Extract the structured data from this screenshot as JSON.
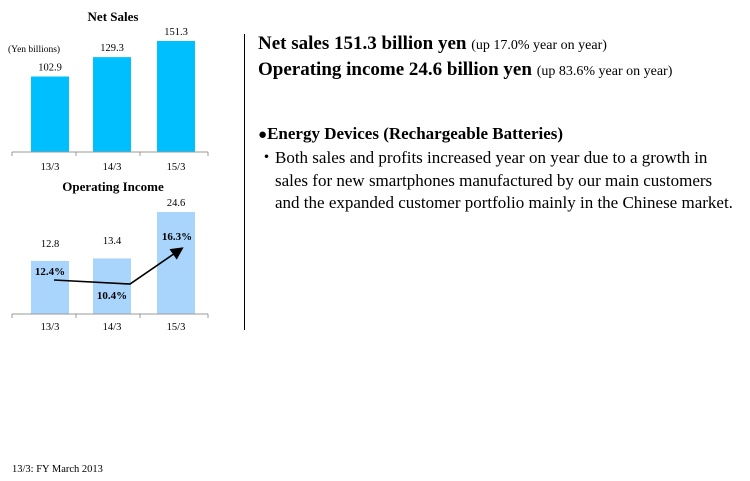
{
  "chart_data": [
    {
      "type": "bar",
      "title": "Net Sales",
      "unit_label": "(Yen billions)",
      "categories": [
        "13/3",
        "14/3",
        "15/3"
      ],
      "values": [
        102.9,
        129.3,
        151.3
      ],
      "value_labels": [
        "102.9",
        "129.3",
        "151.3"
      ],
      "ylim": [
        0,
        151.3
      ],
      "colors": {
        "bar": "#00bfff",
        "axis": "#999999"
      },
      "grid": false
    },
    {
      "type": "bar",
      "title": "Operating Income",
      "categories": [
        "13/3",
        "14/3",
        "15/3"
      ],
      "values": [
        12.8,
        13.4,
        24.6
      ],
      "value_labels": [
        "12.8",
        "13.4",
        "24.6"
      ],
      "margin_labels": [
        "12.4%",
        "10.4%",
        "16.3%"
      ],
      "margin_values": [
        12.4,
        10.4,
        16.3
      ],
      "ylim": [
        0,
        24.6
      ],
      "colors": {
        "bar": "#a9d4fb",
        "axis": "#999999",
        "arrow": "#000000"
      },
      "grid": false
    }
  ],
  "summary": {
    "net_sales": "Net sales 151.3 billion yen",
    "net_sales_note": "(up 17.0% year on year)",
    "operating_income": "Operating income 24.6 billion yen",
    "operating_income_note": "(up 83.6% year on year)"
  },
  "section": {
    "bullet": "●",
    "title": "Energy Devices (Rechargeable Batteries)",
    "marker": "・",
    "text": "Both sales and profits increased year on year due to a growth in sales for new smartphones manufactured by our main customers and the expanded customer portfolio mainly in the Chinese market."
  },
  "footnote": "13/3: FY March 2013"
}
